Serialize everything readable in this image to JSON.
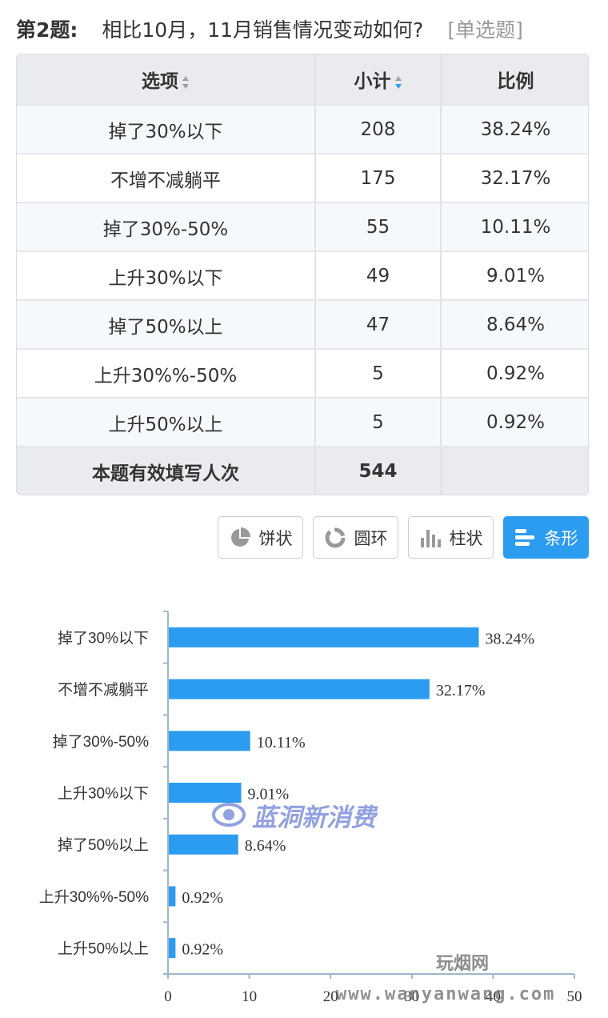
{
  "question": {
    "number": "第2题:",
    "text": "相比10月，11月销售情况变动如何?",
    "type": "[单选题]"
  },
  "table": {
    "headers": [
      "选项",
      "小计",
      "比例"
    ],
    "rows": [
      {
        "option": "掉了30%以下",
        "count": "208",
        "ratio": "38.24%"
      },
      {
        "option": "不增不减躺平",
        "count": "175",
        "ratio": "32.17%"
      },
      {
        "option": "掉了30%-50%",
        "count": "55",
        "ratio": "10.11%"
      },
      {
        "option": "上升30%以下",
        "count": "49",
        "ratio": "9.01%"
      },
      {
        "option": "掉了50%以上",
        "count": "47",
        "ratio": "8.64%"
      },
      {
        "option": "上升30%%-50%",
        "count": "5",
        "ratio": "0.92%"
      },
      {
        "option": "上升50%以上",
        "count": "5",
        "ratio": "0.92%"
      }
    ],
    "footer": {
      "label": "本题有效填写人次",
      "count": "544",
      "ratio": ""
    }
  },
  "chart_types": [
    {
      "label": "饼状",
      "icon": "pie-chart-icon",
      "active": false
    },
    {
      "label": "圆环",
      "icon": "ring-chart-icon",
      "active": false
    },
    {
      "label": "柱状",
      "icon": "column-chart-icon",
      "active": false
    },
    {
      "label": "条形",
      "icon": "bar-chart-icon",
      "active": true
    }
  ],
  "colors": {
    "bar": "#2c9cf0",
    "accent": "#2c9cf0"
  },
  "chart_data": {
    "type": "bar",
    "orientation": "horizontal",
    "categories": [
      "掉了30%以下",
      "不增不减躺平",
      "掉了30%-50%",
      "上升30%以下",
      "掉了50%以上",
      "上升30%%-50%",
      "上升50%以上"
    ],
    "values": [
      38.24,
      32.17,
      10.11,
      9.01,
      8.64,
      0.92,
      0.92
    ],
    "value_labels": [
      "38.24%",
      "32.17%",
      "10.11%",
      "9.01%",
      "8.64%",
      "0.92%",
      "0.92%"
    ],
    "xlim": [
      0,
      50
    ],
    "xticks": [
      "0",
      "10",
      "20",
      "30",
      "40",
      "50"
    ],
    "grid": false
  },
  "watermarks": {
    "brand": "蓝洞新消费",
    "site_cn": "玩烟网",
    "site_url": "www.wanyanwang.com"
  }
}
